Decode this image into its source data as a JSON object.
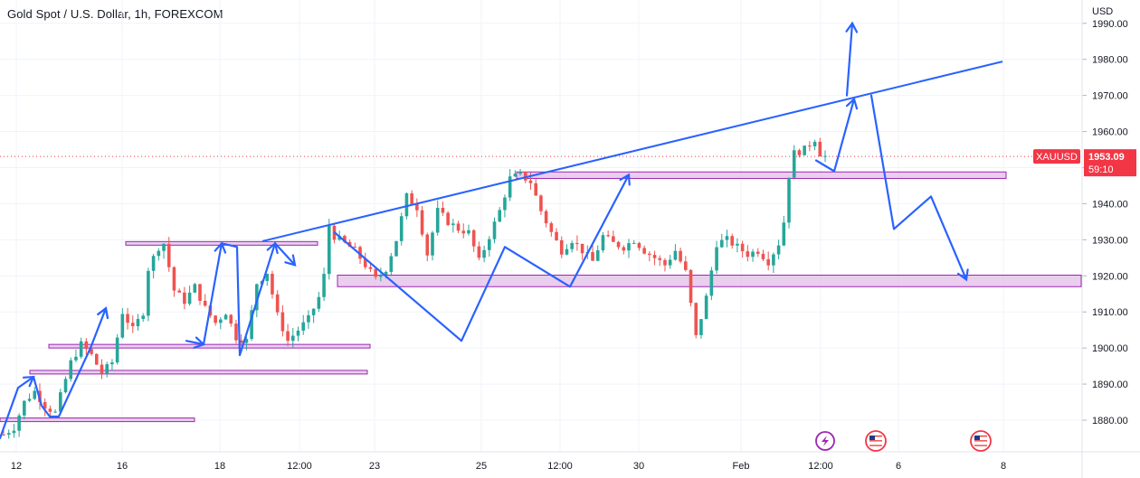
{
  "header": {
    "title": "Gold Spot / U.S. Dollar, 1h, FOREXCOM",
    "currency": "USD"
  },
  "price_badge": {
    "symbol": "XAUUSD",
    "price": "1953.09",
    "countdown": "59:10",
    "color": "#f23645"
  },
  "colors": {
    "up": "#26a69a",
    "down": "#ef5350",
    "drawing": "#2962ff",
    "zone_fill": "#e1bee7",
    "zone_border": "#9c27b0",
    "grid": "#f0f3fa",
    "axis_text": "#131722"
  },
  "events": [
    {
      "icon": "lightning-icon",
      "color": "#9c27b0"
    },
    {
      "icon": "us-flag-icon",
      "color": "#f23645"
    },
    {
      "icon": "us-flag-icon",
      "color": "#f23645"
    }
  ],
  "chart_data": {
    "type": "candlestick",
    "title": "Gold Spot / U.S. Dollar, 1h, FOREXCOM",
    "ylabel": "USD",
    "ylim": [
      1873,
      1995
    ],
    "grid": true,
    "y_ticks": [
      1880,
      1890,
      1900,
      1910,
      1920,
      1930,
      1940,
      1950,
      1960,
      1970,
      1980,
      1990
    ],
    "y_tick_labels": [
      "1880.00",
      "1890.00",
      "1900.00",
      "1910.00",
      "1920.00",
      "1930.00",
      "1940.00",
      "1950.00",
      "1960.00",
      "1970.00",
      "1980.00",
      "1990.00"
    ],
    "x_ticks": [
      "12",
      "16",
      "18",
      "12:00",
      "23",
      "25",
      "12:00",
      "30",
      "Feb",
      "12:00",
      "6",
      "8"
    ],
    "last_price": 1953.09,
    "price_path": [
      [
        0,
        1876
      ],
      [
        2,
        1878
      ],
      [
        4,
        1885
      ],
      [
        6,
        1888
      ],
      [
        8,
        1884
      ],
      [
        10,
        1882
      ],
      [
        13,
        1896
      ],
      [
        15,
        1901
      ],
      [
        17,
        1898
      ],
      [
        19,
        1893
      ],
      [
        21,
        1896
      ],
      [
        23,
        1910
      ],
      [
        25,
        1905
      ],
      [
        27,
        1910
      ],
      [
        28,
        1922
      ],
      [
        30,
        1928
      ],
      [
        31,
        1929
      ],
      [
        33,
        1916
      ],
      [
        35,
        1913
      ],
      [
        37,
        1917
      ],
      [
        39,
        1911
      ],
      [
        41,
        1907
      ],
      [
        43,
        1910
      ],
      [
        45,
        1903
      ],
      [
        47,
        1902
      ],
      [
        49,
        1918
      ],
      [
        51,
        1921
      ],
      [
        53,
        1909
      ],
      [
        55,
        1902
      ],
      [
        57,
        1905
      ],
      [
        59,
        1908
      ],
      [
        61,
        1914
      ],
      [
        62,
        1920
      ],
      [
        63,
        1934
      ],
      [
        64,
        1931
      ],
      [
        66,
        1929
      ],
      [
        68,
        1927
      ],
      [
        70,
        1923
      ],
      [
        72,
        1919
      ],
      [
        74,
        1922
      ],
      [
        76,
        1930
      ],
      [
        78,
        1942
      ],
      [
        80,
        1939
      ],
      [
        82,
        1926
      ],
      [
        84,
        1938
      ],
      [
        86,
        1935
      ],
      [
        88,
        1933
      ],
      [
        90,
        1932
      ],
      [
        92,
        1924
      ],
      [
        94,
        1931
      ],
      [
        96,
        1938
      ],
      [
        98,
        1947
      ],
      [
        100,
        1948
      ],
      [
        102,
        1946
      ],
      [
        104,
        1938
      ],
      [
        106,
        1932
      ],
      [
        108,
        1927
      ],
      [
        110,
        1930
      ],
      [
        112,
        1927
      ],
      [
        114,
        1924
      ],
      [
        116,
        1931
      ],
      [
        118,
        1929
      ],
      [
        120,
        1928
      ],
      [
        122,
        1930
      ],
      [
        124,
        1927
      ],
      [
        126,
        1925
      ],
      [
        128,
        1923
      ],
      [
        130,
        1927
      ],
      [
        132,
        1921
      ],
      [
        134,
        1903
      ],
      [
        136,
        1914
      ],
      [
        138,
        1929
      ],
      [
        140,
        1930
      ],
      [
        142,
        1928
      ],
      [
        144,
        1926
      ],
      [
        146,
        1927
      ],
      [
        148,
        1924
      ],
      [
        150,
        1929
      ],
      [
        151,
        1935
      ],
      [
        152,
        1948
      ],
      [
        153,
        1954
      ],
      [
        155,
        1955
      ],
      [
        157,
        1958
      ],
      [
        158,
        1954
      ],
      [
        159,
        1953.09
      ]
    ],
    "zones": [
      {
        "x0": 0,
        "x1": 215,
        "y0": 1880.6,
        "y1": 1879.6
      },
      {
        "x0": 33,
        "x1": 406,
        "y0": 1893.8,
        "y1": 1892.8
      },
      {
        "x0": 54,
        "x1": 409,
        "y0": 1901.0,
        "y1": 1900.0
      },
      {
        "x0": 139,
        "x1": 351,
        "y0": 1929.5,
        "y1": 1928.5
      },
      {
        "x0": 571,
        "x1": 1112,
        "y0": 1948.8,
        "y1": 1947.0
      },
      {
        "x0": 373,
        "x1": 1195,
        "y0": 1920.2,
        "y1": 1917.0
      }
    ],
    "trendline": [
      [
        290,
        1929.6
      ],
      [
        1108,
        1979.4
      ]
    ],
    "drawn_path_1": [
      [
        0,
        1875
      ],
      [
        20,
        1889
      ],
      [
        37,
        1892
      ],
      [
        46,
        1884
      ],
      [
        55,
        1881
      ],
      [
        65,
        1881
      ],
      [
        100,
        1900
      ],
      [
        117,
        1911
      ]
    ],
    "drawn_path_2": [
      [
        206,
        1902
      ],
      [
        225,
        1901
      ],
      [
        245,
        1929
      ],
      [
        262,
        1928
      ],
      [
        265,
        1898
      ],
      [
        304,
        1929
      ],
      [
        326,
        1923
      ]
    ],
    "drawn_path_3": [
      [
        370,
        1932
      ],
      [
        510,
        1902
      ],
      [
        558,
        1928
      ],
      [
        630,
        1917
      ],
      [
        695,
        1948
      ]
    ],
    "drawn_path_4": [
      [
        902,
        1952
      ],
      [
        922,
        1949
      ],
      [
        944,
        1969
      ]
    ],
    "drawn_path_5": [
      [
        936,
        1970
      ],
      [
        942,
        1990
      ]
    ],
    "drawn_path_6": [
      [
        963,
        1970
      ],
      [
        988,
        1933
      ],
      [
        1029,
        1942
      ],
      [
        1068,
        1919
      ]
    ]
  }
}
